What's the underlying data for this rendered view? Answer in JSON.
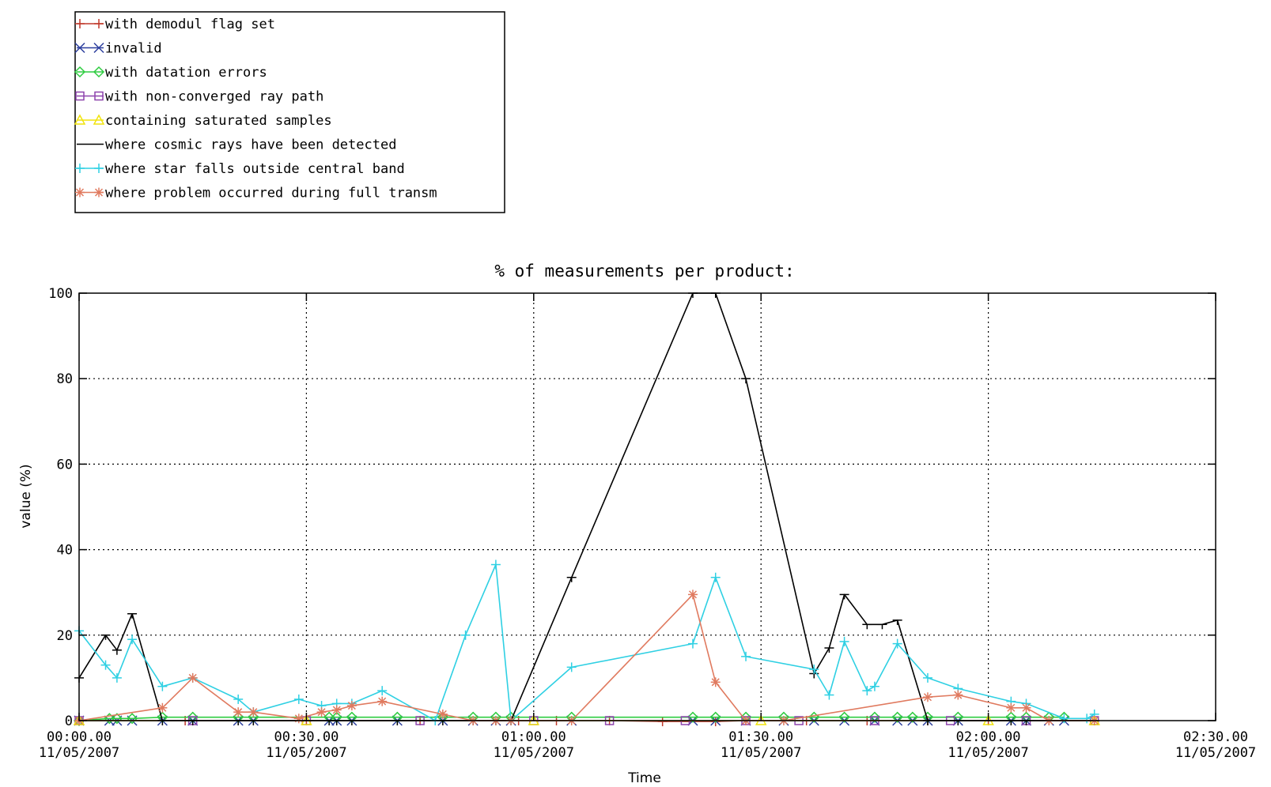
{
  "chart_data": {
    "type": "line",
    "title": "% of measurements per product:",
    "xlabel": "Time",
    "ylabel": "value (%)",
    "xlim": [
      0,
      150
    ],
    "ylim": [
      0,
      100
    ],
    "grid": true,
    "legend_position": "top-left-outside",
    "yticks": [
      0,
      20,
      40,
      60,
      80,
      100
    ],
    "xticks": [
      {
        "x": 0,
        "time": "00:00.00",
        "date": "11/05/2007"
      },
      {
        "x": 30,
        "time": "00:30.00",
        "date": "11/05/2007"
      },
      {
        "x": 60,
        "time": "01:00.00",
        "date": "11/05/2007"
      },
      {
        "x": 90,
        "time": "01:30.00",
        "date": "11/05/2007"
      },
      {
        "x": 120,
        "time": "02:00.00",
        "date": "11/05/2007"
      },
      {
        "x": 150,
        "time": "02:30.00",
        "date": "11/05/2007"
      }
    ],
    "x_unit": "minutes after 00:00 11/05/2007",
    "series": [
      {
        "name": "with demodul flag set",
        "color": "#c0392b",
        "marker": "plus",
        "x": [
          0,
          14,
          30,
          45,
          58,
          63,
          70,
          77,
          84,
          88,
          96,
          104,
          112,
          120,
          128,
          134
        ],
        "y": [
          0,
          0,
          0,
          0,
          0,
          0,
          0,
          -0.2,
          -0.2,
          0,
          0,
          0,
          0,
          0,
          0,
          0
        ]
      },
      {
        "name": "invalid",
        "color": "#2c3e9e",
        "marker": "x",
        "x": [
          0,
          4,
          5,
          7,
          11,
          15,
          21,
          23,
          33,
          34,
          36,
          42,
          48,
          52,
          55,
          57,
          65,
          81,
          84,
          88,
          93,
          97,
          101,
          105,
          108,
          110,
          112,
          116,
          123,
          125,
          128,
          130
        ],
        "y": [
          0,
          0,
          0,
          0,
          0,
          0,
          0,
          0,
          0,
          0,
          0,
          0,
          0,
          0,
          0,
          0,
          0,
          0,
          0,
          0,
          0,
          0,
          0,
          0,
          0,
          0,
          0,
          0,
          0,
          0,
          0,
          0
        ]
      },
      {
        "name": "with datation errors",
        "color": "#2ecc40",
        "marker": "diamond",
        "x": [
          0,
          4,
          5,
          7,
          11,
          15,
          21,
          23,
          33,
          34,
          36,
          42,
          48,
          52,
          55,
          57,
          65,
          81,
          84,
          88,
          93,
          97,
          101,
          105,
          108,
          110,
          112,
          116,
          123,
          125,
          128,
          130
        ],
        "y": [
          0,
          0.5,
          0.5,
          0.5,
          0.8,
          0.8,
          0.8,
          0.8,
          0.8,
          0.8,
          0.8,
          0.8,
          0.8,
          0.8,
          0.8,
          0.8,
          0.8,
          0.8,
          0.8,
          0.8,
          0.8,
          0.8,
          0.8,
          0.8,
          0.8,
          0.8,
          0.8,
          0.8,
          0.8,
          0.8,
          0.8,
          0.8
        ]
      },
      {
        "name": "with non-converged ray path",
        "color": "#8e44ad",
        "marker": "square",
        "x": [
          0,
          15,
          30,
          45,
          60,
          70,
          80,
          88,
          95,
          105,
          115,
          125,
          134
        ],
        "y": [
          0,
          0,
          0,
          0,
          0,
          0,
          0,
          0,
          0,
          0,
          0,
          0,
          0
        ]
      },
      {
        "name": "containing saturated samples",
        "color": "#f1e40f",
        "marker": "triangle",
        "x": [
          0,
          30,
          60,
          90,
          120,
          134
        ],
        "y": [
          0,
          0,
          0,
          0,
          0,
          0
        ]
      },
      {
        "name": "where cosmic rays have been detected",
        "color": "#000000",
        "marker": "dash",
        "x": [
          0,
          3.5,
          5,
          7,
          11,
          15,
          21,
          23,
          33,
          34,
          36,
          42,
          48,
          52,
          55,
          57,
          65,
          81,
          84,
          88,
          97,
          99,
          101,
          104,
          106,
          108,
          112,
          116,
          123,
          125,
          128,
          134
        ],
        "y": [
          10,
          20,
          16.5,
          25,
          0,
          0,
          0,
          0,
          0,
          0,
          0,
          0,
          0,
          0,
          0,
          0,
          33.5,
          100,
          100,
          80,
          11,
          17,
          29.5,
          22.5,
          22.5,
          23.5,
          0,
          0,
          0,
          0,
          0,
          0
        ]
      },
      {
        "name": "where star falls outside central band",
        "color": "#2fd0e3",
        "marker": "plus",
        "x": [
          0,
          3.5,
          5,
          7,
          11,
          15,
          21,
          23,
          29,
          32,
          34,
          36,
          40,
          47,
          51,
          55,
          57,
          65,
          81,
          84,
          88,
          97,
          99,
          101,
          104,
          105,
          108,
          112,
          116,
          123,
          125,
          130,
          133,
          134
        ],
        "y": [
          21,
          13,
          10,
          19,
          8,
          10,
          5,
          2,
          5,
          3.5,
          4,
          4,
          7,
          0,
          20,
          36.5,
          0,
          12.5,
          18,
          33.5,
          15,
          12,
          6,
          18.5,
          7,
          8,
          18,
          10,
          7.5,
          4.5,
          4,
          0.5,
          0.5,
          1.5
        ]
      },
      {
        "name": "where problem occurred during full transm",
        "color": "#e07a5f",
        "marker": "asterisk",
        "x": [
          0,
          11,
          15,
          21,
          23,
          29,
          32,
          34,
          36,
          40,
          48,
          52,
          55,
          57,
          65,
          81,
          84,
          88,
          93,
          112,
          116,
          123,
          125,
          128,
          134
        ],
        "y": [
          0,
          3,
          10,
          2,
          2,
          0.5,
          2,
          2.5,
          3.5,
          4.5,
          1.5,
          0,
          0,
          0,
          0,
          29.5,
          9,
          0,
          0,
          5.5,
          6,
          3,
          3,
          0,
          0
        ]
      }
    ]
  }
}
